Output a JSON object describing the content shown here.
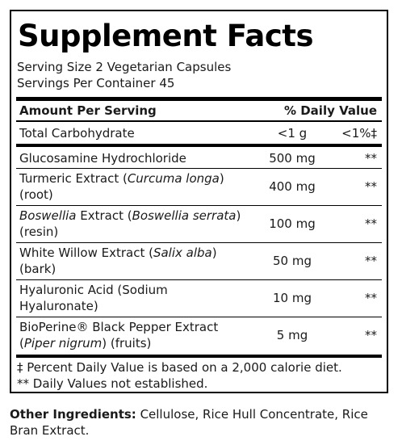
{
  "panel": {
    "title": "Supplement Facts",
    "serving_size": "Serving Size 2 Vegetarian Capsules",
    "servings_per_container": "Servings Per Container 45",
    "header": {
      "amount": "Amount Per Serving",
      "dv": "% Daily Value"
    },
    "carb": {
      "name": "Total Carbohydrate",
      "amount": "<1 g",
      "dv": "<1%‡"
    },
    "ingredients": [
      {
        "line1": "Glucosamine Hydrochloride",
        "amount": "500 mg",
        "dv": "**"
      },
      {
        "pre": "Turmeric Extract (",
        "italic": "Curcuma longa",
        "post": ")",
        "line2": "(root)",
        "amount": "400 mg",
        "dv": "**"
      },
      {
        "italic_start": "Boswellia",
        "mid": " Extract (",
        "italic": "Boswellia serrata",
        "post": ")",
        "line2": "(resin)",
        "amount": "100 mg",
        "dv": "**"
      },
      {
        "pre": "White Willow Extract (",
        "italic": "Salix alba",
        "post": ")",
        "line2": "(bark)",
        "amount": "50 mg",
        "dv": "**"
      },
      {
        "line1": "Hyaluronic Acid (Sodium",
        "line2": "Hyaluronate)",
        "amount": "10 mg",
        "dv": "**"
      },
      {
        "line1": "BioPerine® Black Pepper Extract",
        "pre2": "(",
        "italic2": "Piper nigrum",
        "post2": ") (fruits)",
        "amount": "5 mg",
        "dv": "**"
      }
    ],
    "footnote1": "‡ Percent Daily Value is based on a 2,000 calorie diet.",
    "footnote2": "** Daily Values not established."
  },
  "other_ingredients": {
    "label": "Other Ingredients:",
    "text": " Cellulose, Rice Hull Concentrate, Rice Bran Extract."
  }
}
